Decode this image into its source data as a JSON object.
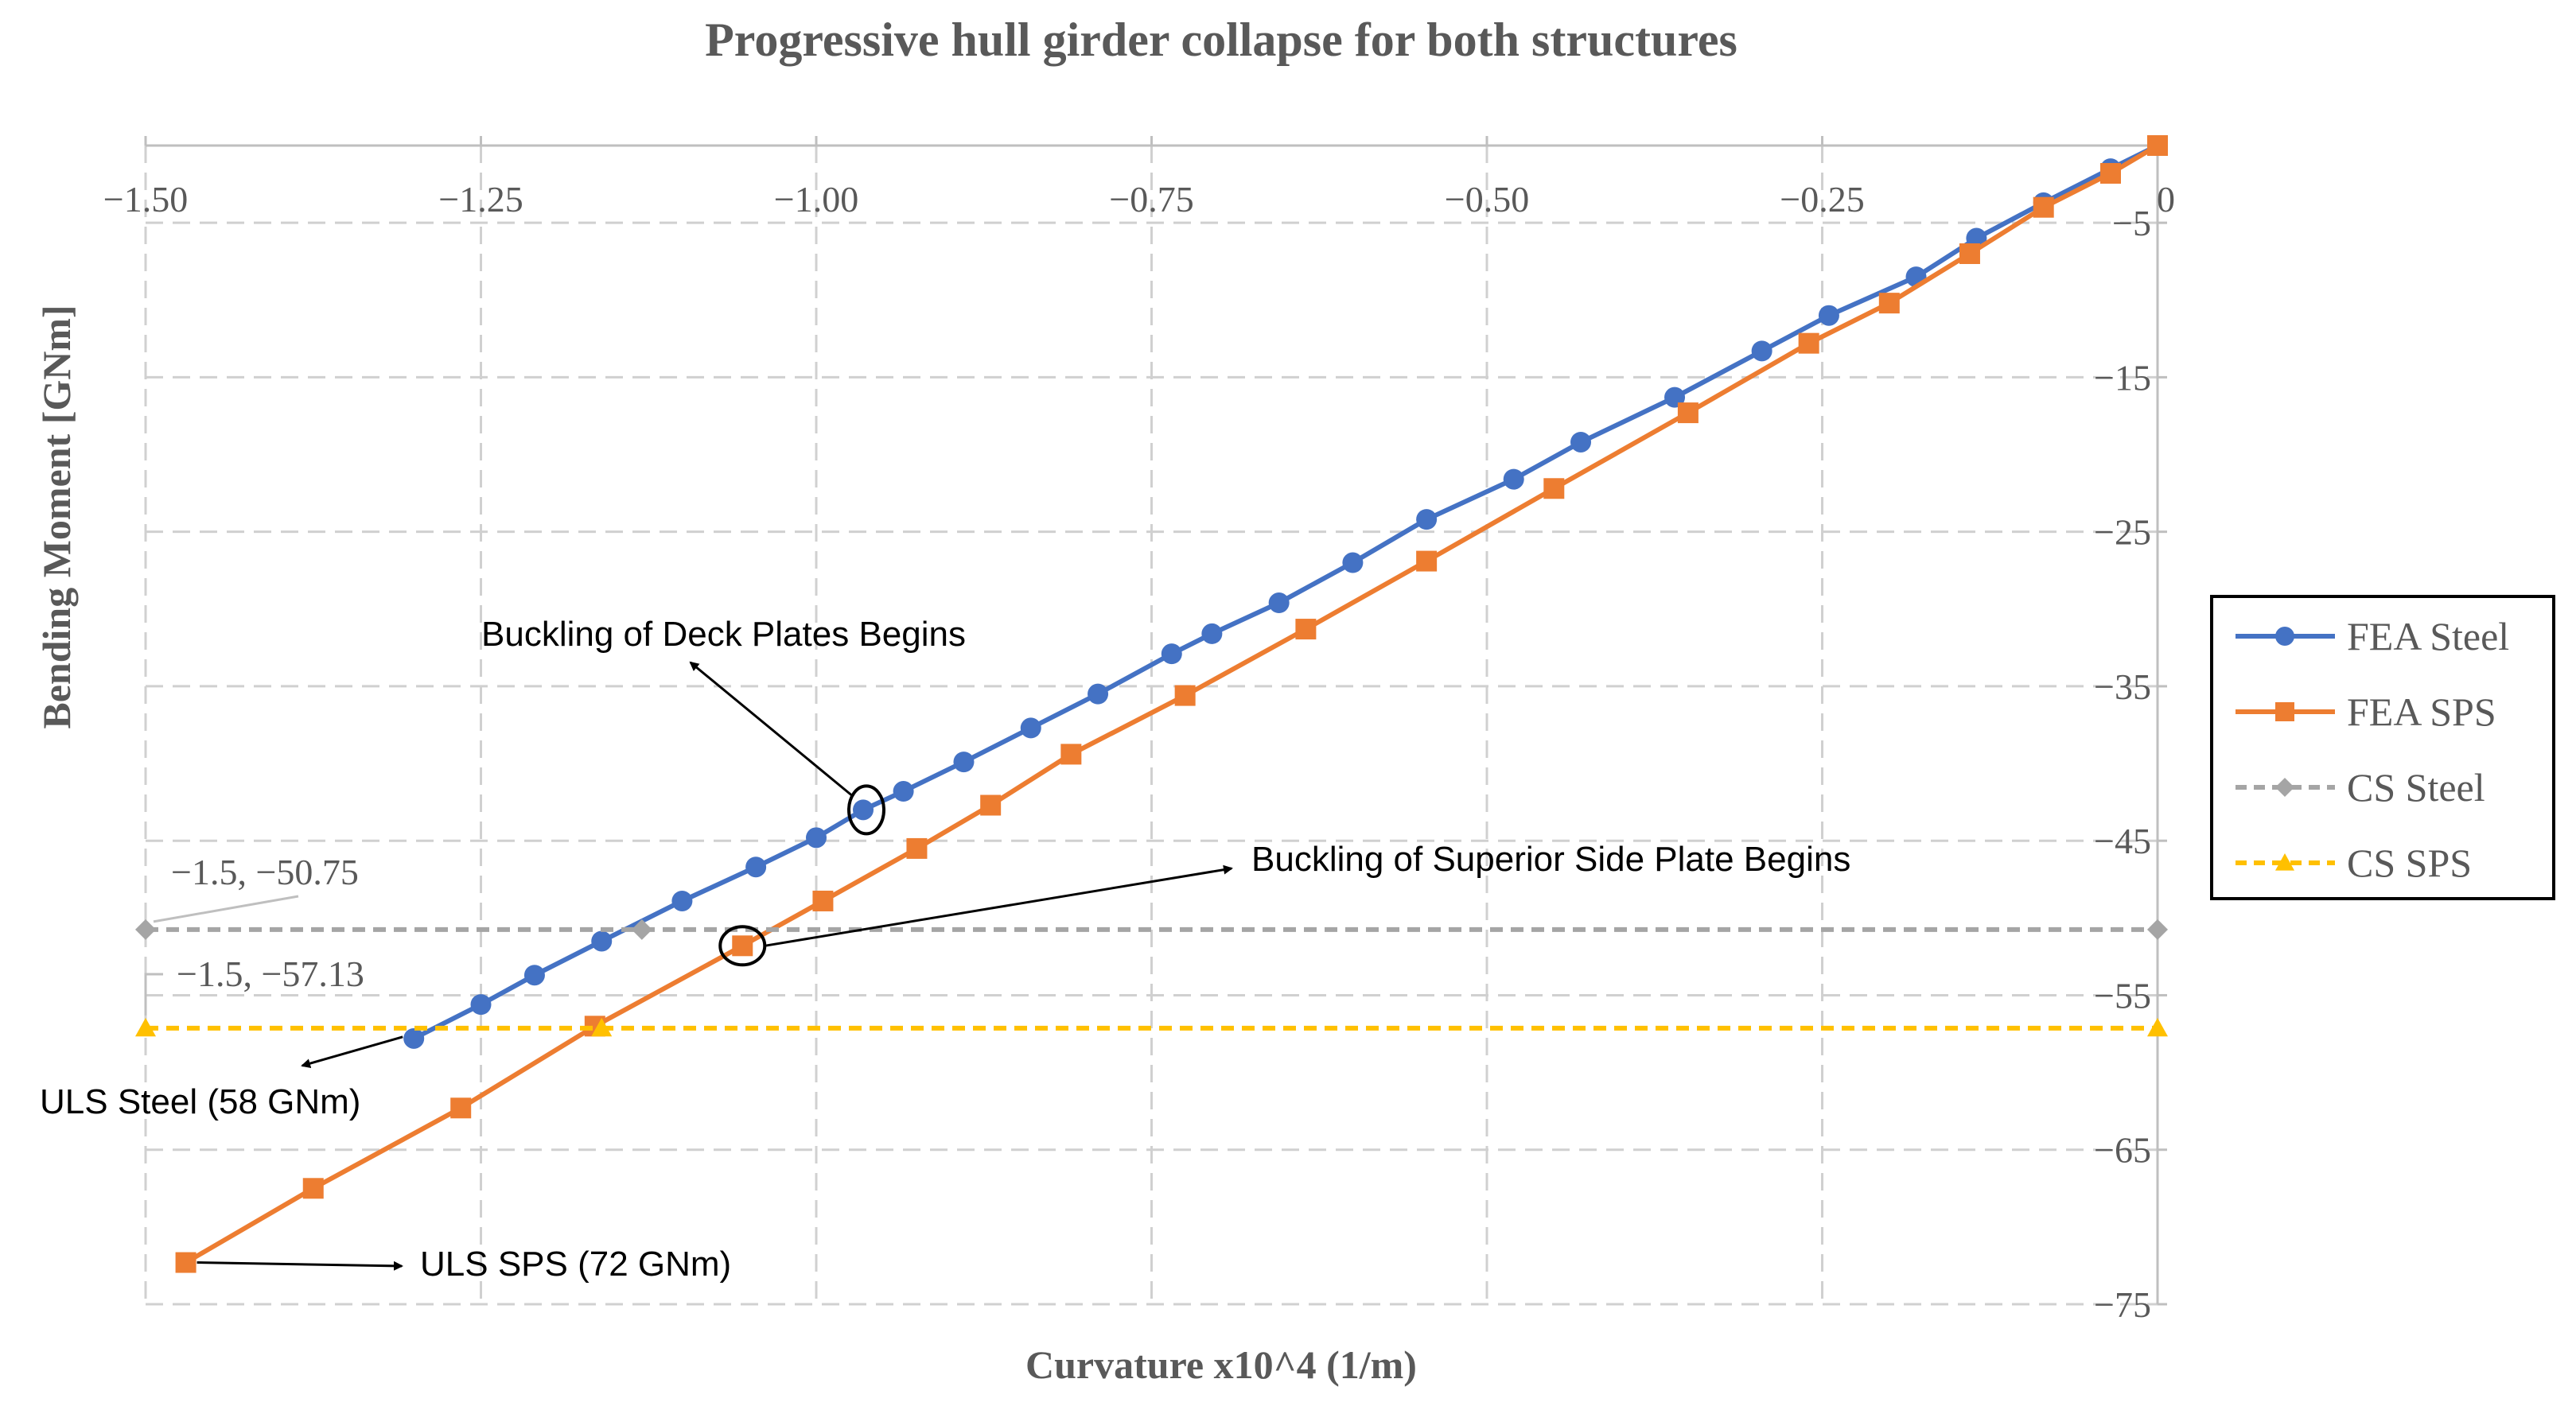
{
  "chart_data": {
    "type": "line",
    "title": "Progressive hull girder collapse for both structures",
    "xlabel": "Curvature x10^4 (1/m)",
    "ylabel": "Bending Moment [GNm]",
    "xlim": [
      -1.5,
      0
    ],
    "ylim": [
      -75,
      0
    ],
    "x_ticks": [
      {
        "value": -1.5,
        "label": "−1.50"
      },
      {
        "value": -1.25,
        "label": "−1.25"
      },
      {
        "value": -1.0,
        "label": "−1.00"
      },
      {
        "value": -0.75,
        "label": "−0.75"
      },
      {
        "value": -0.5,
        "label": "−0.50"
      },
      {
        "value": -0.25,
        "label": "−0.25"
      },
      {
        "value": 0,
        "label": "0"
      }
    ],
    "y_ticks": [
      {
        "value": -5,
        "label": "−5"
      },
      {
        "value": -15,
        "label": "−15"
      },
      {
        "value": -25,
        "label": "−25"
      },
      {
        "value": -35,
        "label": "−35"
      },
      {
        "value": -45,
        "label": "−45"
      },
      {
        "value": -55,
        "label": "−55"
      },
      {
        "value": -65,
        "label": "−65"
      },
      {
        "value": -75,
        "label": "−75"
      }
    ],
    "grid": true,
    "legend_position": "right",
    "series": [
      {
        "name": "FEA Steel",
        "color": "#4472C4",
        "marker": "circle",
        "dash": "solid",
        "x": [
          0,
          -0.035,
          -0.085,
          -0.135,
          -0.18,
          -0.245,
          -0.295,
          -0.36,
          -0.43,
          -0.48,
          -0.545,
          -0.6,
          -0.655,
          -0.705,
          -0.735,
          -0.79,
          -0.84,
          -0.89,
          -0.935,
          -0.965,
          -1.0,
          -1.045,
          -1.1,
          -1.16,
          -1.21,
          -1.25,
          -1.3
        ],
        "y": [
          0,
          -1.5,
          -3.7,
          -6.0,
          -8.5,
          -11.0,
          -13.3,
          -16.3,
          -19.2,
          -21.6,
          -24.2,
          -27.0,
          -29.6,
          -31.6,
          -32.9,
          -35.5,
          -37.7,
          -39.9,
          -41.8,
          -43.0,
          -44.8,
          -46.7,
          -48.9,
          -51.5,
          -53.7,
          -55.6,
          -57.8
        ]
      },
      {
        "name": "FEA SPS",
        "color": "#ED7D31",
        "marker": "square",
        "dash": "solid",
        "x": [
          0,
          -0.035,
          -0.085,
          -0.14,
          -0.2,
          -0.26,
          -0.35,
          -0.45,
          -0.545,
          -0.635,
          -0.725,
          -0.81,
          -0.87,
          -0.925,
          -0.995,
          -1.055,
          -1.165,
          -1.265,
          -1.375,
          -1.47
        ],
        "y": [
          0,
          -1.8,
          -4.0,
          -7.0,
          -10.2,
          -12.8,
          -17.3,
          -22.2,
          -26.9,
          -31.3,
          -35.6,
          -39.4,
          -42.7,
          -45.5,
          -48.9,
          -51.8,
          -57.0,
          -62.3,
          -67.5,
          -72.3
        ]
      },
      {
        "name": "CS Steel",
        "color": "#A5A5A5",
        "marker": "diamond",
        "dash": "dashed",
        "x": [
          -1.5,
          -1.13,
          0
        ],
        "y": [
          -50.75,
          -50.75,
          -50.75
        ]
      },
      {
        "name": "CS SPS",
        "color": "#FFC000",
        "marker": "triangle",
        "dash": "dashed",
        "x": [
          -1.5,
          -1.16,
          0
        ],
        "y": [
          -57.13,
          -57.13,
          -57.13
        ]
      }
    ],
    "annotations": [
      {
        "text": "Buckling of Deck Plates Begins",
        "target_x": -0.965,
        "target_y": -43.0,
        "series": "FEA Steel"
      },
      {
        "text": "Buckling of Superior Side Plate Begins",
        "target_x": -1.055,
        "target_y": -51.8,
        "series": "FEA SPS"
      },
      {
        "text": "ULS Steel (58 GNm)",
        "target_x": -1.3,
        "target_y": -57.8
      },
      {
        "text": "ULS SPS (72 GNm)",
        "target_x": -1.47,
        "target_y": -72.3
      },
      {
        "text": "−1.5, −50.75",
        "target_x": -1.5,
        "target_y": -50.75
      },
      {
        "text": "−1.5, −57.13",
        "target_x": -1.5,
        "target_y": -57.13
      }
    ]
  }
}
